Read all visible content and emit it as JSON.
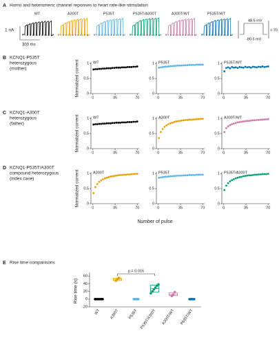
{
  "panel_a": {
    "letter": "A",
    "title": "Homo and heteromeric channel reponses to heart rate-like stimulation",
    "labels": [
      "WT",
      "A300T",
      "P535T",
      "P535T/A300T",
      "A300T/WT",
      "P535T/WT"
    ],
    "colors": [
      "#000000",
      "#e69f00",
      "#56b4e9",
      "#009e73",
      "#cc79a7",
      "#0072b2"
    ],
    "scale_current": "1 nA",
    "scale_time": "300 ms",
    "protocol_top": "48.5 mV",
    "protocol_bottom": "-80.5 mV",
    "protocol_repeat": "× 70"
  },
  "rows": [
    {
      "letter": "B",
      "title": "KCNQ1-P535T",
      "subtitle": "heterozygous",
      "note": "(mother)"
    },
    {
      "letter": "C",
      "title": "KCNQ1-A300T",
      "subtitle": "heterozygous",
      "note": "(father)"
    },
    {
      "letter": "D",
      "title": "KCNQ1-P535T/A300T",
      "subtitle": "compound heterozygous",
      "note": "(index case)"
    }
  ],
  "shared": {
    "ylabel": "Normalized current",
    "xlabel": "Number of pulse"
  },
  "chart_data": [
    {
      "type": "scatter",
      "title": "WT",
      "color": "#000000",
      "xlim": [
        -3,
        73
      ],
      "xticks": [
        0,
        35,
        70
      ],
      "ylim": [
        0,
        1.05
      ],
      "yticks": [
        0,
        0.5,
        1
      ],
      "x": [
        1,
        4,
        7,
        10,
        13,
        16,
        19,
        22,
        25,
        28,
        31,
        34,
        37,
        40,
        43,
        46,
        49,
        52,
        55,
        58,
        61,
        64,
        67,
        70
      ],
      "values": [
        0.8,
        0.81,
        0.81,
        0.82,
        0.82,
        0.83,
        0.83,
        0.84,
        0.84,
        0.84,
        0.85,
        0.85,
        0.86,
        0.86,
        0.86,
        0.87,
        0.87,
        0.87,
        0.88,
        0.88,
        0.88,
        0.89,
        0.89,
        0.9
      ]
    },
    {
      "type": "scatter",
      "title": "P535T",
      "color": "#56b4e9",
      "xlim": [
        -3,
        73
      ],
      "xticks": [
        0,
        35,
        70
      ],
      "ylim": [
        0,
        1.05
      ],
      "yticks": [
        0,
        0.5,
        1
      ],
      "x": [
        1,
        4,
        7,
        10,
        13,
        16,
        19,
        22,
        25,
        28,
        31,
        34,
        37,
        40,
        43,
        46,
        49,
        52,
        55,
        58,
        61,
        64,
        67,
        70
      ],
      "values": [
        0.86,
        0.87,
        0.88,
        0.89,
        0.89,
        0.9,
        0.91,
        0.91,
        0.92,
        0.92,
        0.93,
        0.93,
        0.93,
        0.94,
        0.94,
        0.94,
        0.95,
        0.95,
        0.95,
        0.95,
        0.96,
        0.96,
        0.96,
        0.96
      ]
    },
    {
      "type": "scatter",
      "title": "P535T/WT",
      "color": "#0072b2",
      "xlim": [
        -3,
        73
      ],
      "xticks": [
        0,
        35,
        70
      ],
      "ylim": [
        0,
        1.05
      ],
      "yticks": [
        0,
        0.5,
        1
      ],
      "x": [
        1,
        4,
        7,
        10,
        13,
        16,
        19,
        22,
        25,
        28,
        31,
        34,
        37,
        40,
        43,
        46,
        49,
        52,
        55,
        58,
        61,
        64,
        67,
        70
      ],
      "values": [
        0.74,
        0.85,
        0.87,
        0.84,
        0.88,
        0.86,
        0.87,
        0.85,
        0.88,
        0.87,
        0.86,
        0.89,
        0.87,
        0.88,
        0.86,
        0.89,
        0.88,
        0.87,
        0.89,
        0.88,
        0.9,
        0.88,
        0.89,
        0.9
      ]
    },
    {
      "type": "scatter",
      "title": "WT",
      "color": "#000000",
      "xlim": [
        -3,
        73
      ],
      "xticks": [
        0,
        35,
        70
      ],
      "ylim": [
        0,
        1.05
      ],
      "yticks": [
        0,
        0.5,
        1
      ],
      "x": [
        1,
        4,
        7,
        10,
        13,
        16,
        19,
        22,
        25,
        28,
        31,
        34,
        37,
        40,
        43,
        46,
        49,
        52,
        55,
        58,
        61,
        64,
        67,
        70
      ],
      "values": [
        0.8,
        0.81,
        0.81,
        0.82,
        0.82,
        0.83,
        0.83,
        0.84,
        0.84,
        0.84,
        0.85,
        0.85,
        0.86,
        0.86,
        0.86,
        0.87,
        0.87,
        0.87,
        0.88,
        0.88,
        0.88,
        0.89,
        0.89,
        0.9
      ]
    },
    {
      "type": "scatter",
      "title": "A300T",
      "color": "#e69f00",
      "xlim": [
        -3,
        73
      ],
      "xticks": [
        0,
        35,
        70
      ],
      "ylim": [
        0,
        1.05
      ],
      "yticks": [
        0,
        0.5,
        1
      ],
      "x": [
        1,
        4,
        7,
        10,
        13,
        16,
        19,
        22,
        25,
        28,
        31,
        34,
        37,
        40,
        43,
        46,
        49,
        52,
        55,
        58,
        61,
        64,
        67,
        70
      ],
      "values": [
        0.35,
        0.55,
        0.65,
        0.72,
        0.77,
        0.81,
        0.84,
        0.86,
        0.88,
        0.9,
        0.91,
        0.92,
        0.93,
        0.94,
        0.95,
        0.95,
        0.96,
        0.96,
        0.97,
        0.97,
        0.98,
        0.98,
        0.99,
        0.99
      ]
    },
    {
      "type": "scatter",
      "title": "A300T/WT",
      "color": "#cc79a7",
      "xlim": [
        -3,
        73
      ],
      "xticks": [
        0,
        35,
        70
      ],
      "ylim": [
        0,
        1.05
      ],
      "yticks": [
        0,
        0.5,
        1
      ],
      "x": [
        1,
        4,
        7,
        10,
        13,
        16,
        19,
        22,
        25,
        28,
        31,
        34,
        37,
        40,
        43,
        46,
        49,
        52,
        55,
        58,
        61,
        64,
        67,
        70
      ],
      "values": [
        0.55,
        0.68,
        0.74,
        0.78,
        0.81,
        0.83,
        0.85,
        0.87,
        0.88,
        0.89,
        0.9,
        0.91,
        0.92,
        0.92,
        0.93,
        0.94,
        0.94,
        0.95,
        0.95,
        0.96,
        0.96,
        0.97,
        0.97,
        0.98
      ]
    },
    {
      "type": "scatter",
      "title": "A300T",
      "color": "#e69f00",
      "xlim": [
        -3,
        73
      ],
      "xticks": [
        0,
        35,
        70
      ],
      "ylim": [
        0,
        1.05
      ],
      "yticks": [
        0,
        0.5,
        1
      ],
      "x": [
        1,
        4,
        7,
        10,
        13,
        16,
        19,
        22,
        25,
        28,
        31,
        34,
        37,
        40,
        43,
        46,
        49,
        52,
        55,
        58,
        61,
        64,
        67,
        70
      ],
      "values": [
        0.35,
        0.55,
        0.65,
        0.72,
        0.77,
        0.81,
        0.84,
        0.86,
        0.88,
        0.9,
        0.91,
        0.92,
        0.93,
        0.94,
        0.95,
        0.95,
        0.96,
        0.96,
        0.97,
        0.97,
        0.98,
        0.98,
        0.99,
        0.99
      ]
    },
    {
      "type": "scatter",
      "title": "P535T",
      "color": "#56b4e9",
      "xlim": [
        -3,
        73
      ],
      "xticks": [
        0,
        35,
        70
      ],
      "ylim": [
        0,
        1.05
      ],
      "yticks": [
        0,
        0.5,
        1
      ],
      "x": [
        1,
        4,
        7,
        10,
        13,
        16,
        19,
        22,
        25,
        28,
        31,
        34,
        37,
        40,
        43,
        46,
        49,
        52,
        55,
        58,
        61,
        64,
        67,
        70
      ],
      "values": [
        0.86,
        0.87,
        0.88,
        0.89,
        0.89,
        0.9,
        0.91,
        0.91,
        0.92,
        0.92,
        0.93,
        0.93,
        0.93,
        0.94,
        0.94,
        0.94,
        0.95,
        0.95,
        0.95,
        0.95,
        0.96,
        0.96,
        0.96,
        0.96
      ]
    },
    {
      "type": "scatter",
      "title": "P535T/A300T",
      "color": "#009e73",
      "xlim": [
        -3,
        73
      ],
      "xticks": [
        0,
        35,
        70
      ],
      "ylim": [
        0,
        1.05
      ],
      "yticks": [
        0,
        0.5,
        1
      ],
      "x": [
        1,
        4,
        7,
        10,
        13,
        16,
        19,
        22,
        25,
        28,
        31,
        34,
        37,
        40,
        43,
        46,
        49,
        52,
        55,
        58,
        61,
        64,
        67,
        70
      ],
      "values": [
        0.45,
        0.6,
        0.68,
        0.74,
        0.78,
        0.81,
        0.84,
        0.86,
        0.88,
        0.89,
        0.91,
        0.92,
        0.93,
        0.94,
        0.94,
        0.95,
        0.96,
        0.96,
        0.97,
        0.97,
        0.98,
        0.98,
        0.98,
        0.99
      ]
    },
    {
      "type": "box",
      "letter": "E",
      "title": "Rise time comparisons",
      "ylabel": "Rise time (s)",
      "annotation": "p = 0.016",
      "categories": [
        "WT",
        "A300T",
        "P535T",
        "P535T/A300T",
        "A300T/WT",
        "P535T/WT"
      ],
      "colors": [
        "#000000",
        "#e69f00",
        "#56b4e9",
        "#009e73",
        "#cc79a7",
        "#0072b2"
      ],
      "ylim": [
        -20,
        62
      ],
      "yticks": [
        -20,
        0,
        20,
        40,
        60
      ],
      "points": [
        [
          0,
          0,
          0,
          0,
          0,
          0
        ],
        [
          48,
          52,
          55
        ],
        [
          0,
          0,
          0,
          0
        ],
        [
          15,
          20,
          25,
          30,
          35,
          38
        ],
        [
          8,
          12,
          18
        ],
        [
          0,
          0,
          0,
          0
        ]
      ],
      "boxes": [
        null,
        {
          "q1": 48,
          "median": 51,
          "q3": 54
        },
        null,
        {
          "q1": 18,
          "median": 27,
          "q3": 36
        },
        {
          "q1": 9,
          "median": 12,
          "q3": 17
        },
        null
      ]
    }
  ]
}
